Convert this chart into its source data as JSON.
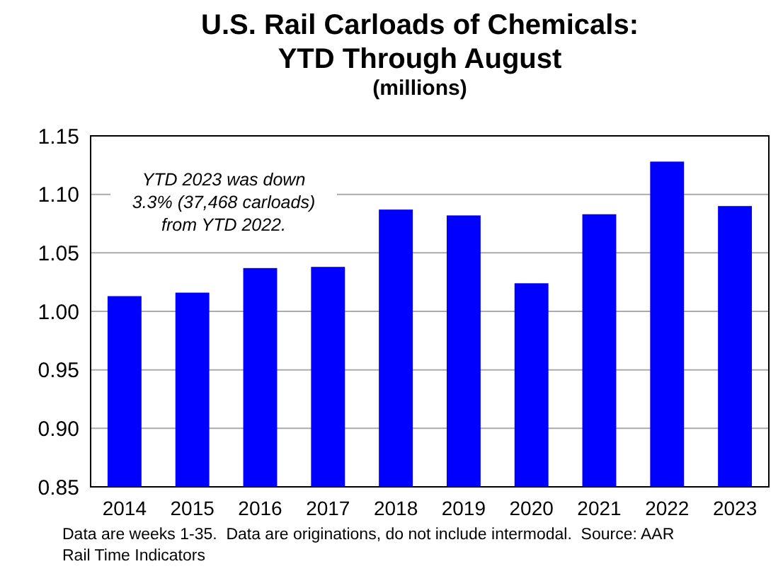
{
  "chart_data": {
    "type": "bar",
    "title": "U.S. Rail Carloads of Chemicals:\nYTD Through August",
    "subtitle": "(millions)",
    "categories": [
      "2014",
      "2015",
      "2016",
      "2017",
      "2018",
      "2019",
      "2020",
      "2021",
      "2022",
      "2023"
    ],
    "values": [
      1.013,
      1.016,
      1.037,
      1.038,
      1.087,
      1.082,
      1.024,
      1.083,
      1.128,
      1.09
    ],
    "color": "#0000ff",
    "ylim": [
      0.85,
      1.15
    ],
    "yticks": [
      {
        "value": 0.85,
        "label": "0.85"
      },
      {
        "value": 0.9,
        "label": "0.90"
      },
      {
        "value": 0.95,
        "label": "0.95"
      },
      {
        "value": 1.0,
        "label": "1.00"
      },
      {
        "value": 1.05,
        "label": "1.05"
      },
      {
        "value": 1.1,
        "label": "1.10"
      },
      {
        "value": 1.15,
        "label": "1.15"
      }
    ],
    "grid": "y",
    "annotations": [
      {
        "text": "YTD 2023 was down\n3.3% (37,468 carloads)\nfrom YTD 2022."
      },
      "Data are weeks 1-35.  Data are originations, do not include intermodal.  Source: AAR Rail Time Indicators"
    ]
  }
}
